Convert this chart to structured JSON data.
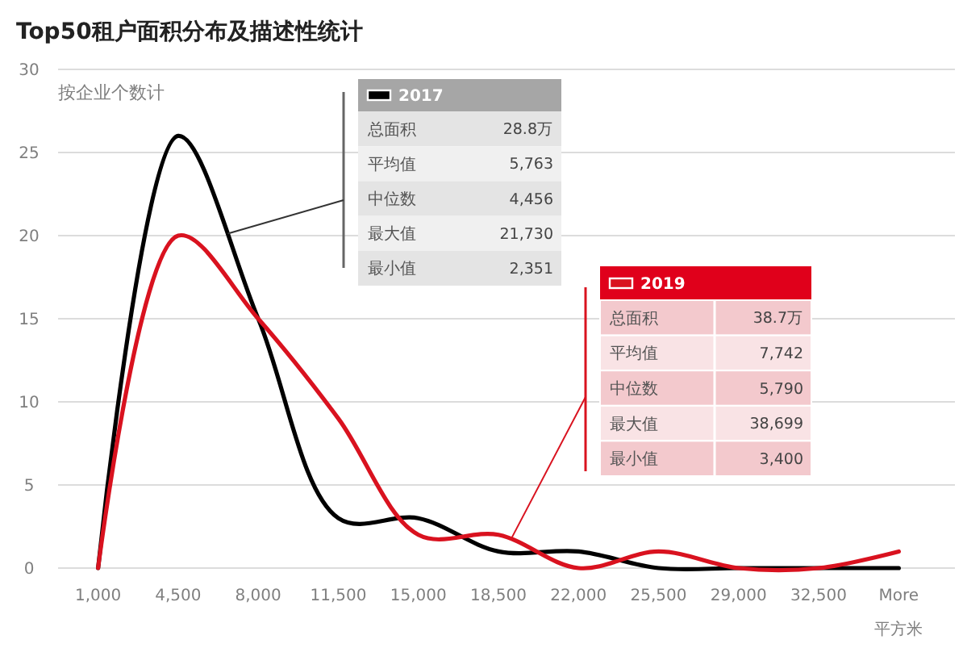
{
  "chart_data": {
    "type": "line",
    "title": "Top50租户面积分布及描述性统计",
    "ylabel": "按企业个数计",
    "xlabel": "平方米",
    "categories": [
      "1,000",
      "4,500",
      "8,000",
      "11,500",
      "15,000",
      "18,500",
      "22,000",
      "25,500",
      "29,000",
      "32,500",
      "More"
    ],
    "series": [
      {
        "name": "2017",
        "color": "#000000",
        "values": [
          0,
          26,
          15,
          3,
          3,
          1,
          1,
          0,
          0,
          0,
          0
        ]
      },
      {
        "name": "2019",
        "color": "#d9121f",
        "values": [
          0,
          20,
          15,
          9,
          2,
          2,
          0,
          1,
          0,
          0,
          1
        ]
      }
    ],
    "ylim": [
      0,
      30
    ],
    "yticks": [
      0,
      5,
      10,
      15,
      20,
      25,
      30
    ],
    "grid": "y",
    "legend": "top",
    "annotations": [
      "总面积",
      "28.8万",
      "平均值",
      "5,763",
      "中位数",
      "4,456",
      "最大值",
      "21,730",
      "最小值",
      "2,351",
      "总面积",
      "38.7万",
      "平均值",
      "7,742",
      "中位数",
      "5,790",
      "最大值",
      "38,699",
      "最小值",
      "3,400"
    ]
  }
}
